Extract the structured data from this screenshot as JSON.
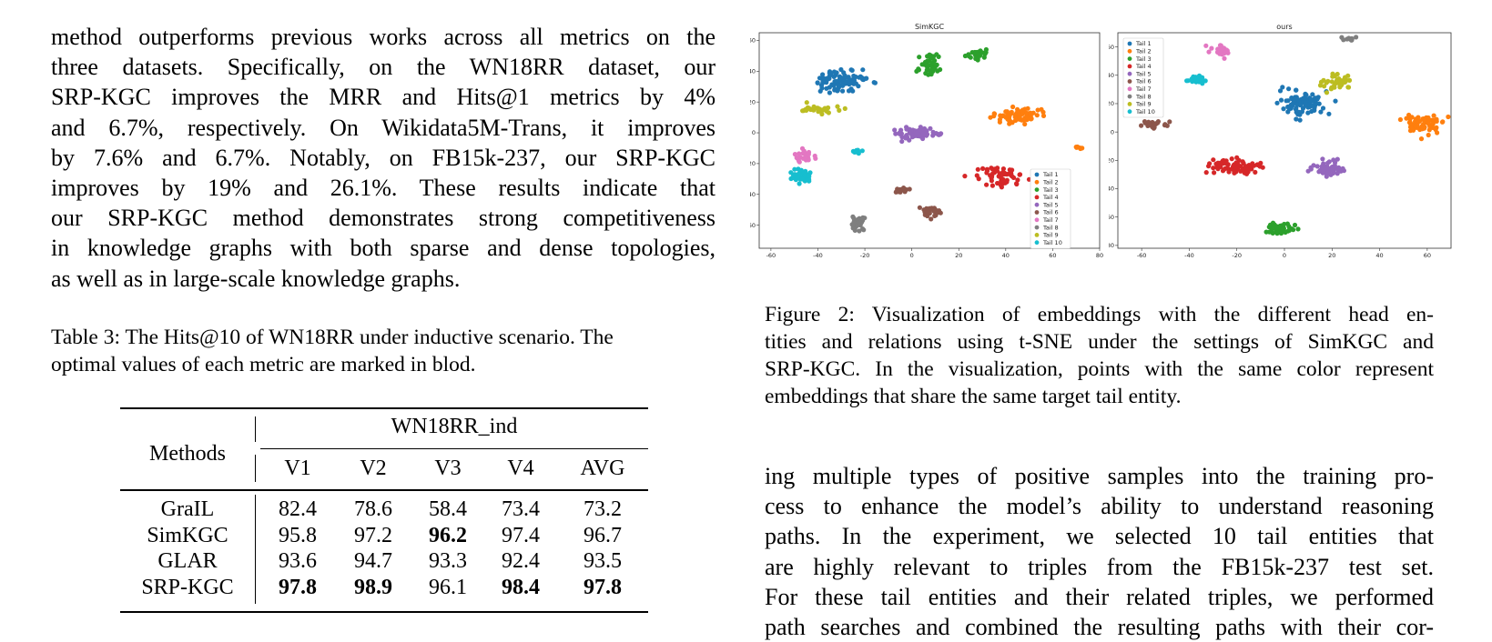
{
  "left_paragraph": [
    "method outperforms previous works across all metrics on the",
    "three datasets.  Specifically, on the WN18RR dataset, our",
    "SRP-KGC improves the MRR and Hits@1 metrics by 4%",
    "and 6.7%, respectively.  On Wikidata5M-Trans, it improves",
    "by 7.6% and 6.7%.  Notably, on FB15k-237, our SRP-KGC",
    "improves by 19% and 26.1%.  These results indicate that",
    "our SRP-KGC method demonstrates strong competitiveness",
    "in knowledge graphs with both sparse and dense topologies,",
    "as well as in large-scale knowledge graphs."
  ],
  "table_caption": [
    "Table 3: The Hits@10 of WN18RR under inductive scenario. The",
    "optimal values of each metric are marked in blod."
  ],
  "table": {
    "row_header": "Methods",
    "group_header": "WN18RR_ind",
    "columns": [
      "V1",
      "V2",
      "V3",
      "V4",
      "AVG"
    ],
    "rows": [
      {
        "method": "GraIL",
        "values": [
          "82.4",
          "78.6",
          "58.4",
          "73.4",
          "73.2"
        ],
        "bold": [
          false,
          false,
          false,
          false,
          false
        ]
      },
      {
        "method": "SimKGC",
        "values": [
          "95.8",
          "97.2",
          "96.2",
          "97.4",
          "96.7"
        ],
        "bold": [
          false,
          false,
          true,
          false,
          false
        ]
      },
      {
        "method": "GLAR",
        "values": [
          "93.6",
          "94.7",
          "93.3",
          "92.4",
          "93.5"
        ],
        "bold": [
          false,
          false,
          false,
          false,
          false
        ]
      },
      {
        "method": "SRP-KGC",
        "values": [
          "97.8",
          "98.9",
          "96.1",
          "98.4",
          "97.8"
        ],
        "bold": [
          true,
          true,
          false,
          true,
          true
        ]
      }
    ]
  },
  "figure_caption": [
    "Figure 2:  Visualization of embeddings with the different head en-",
    "tities and relations using t-SNE under the settings of SimKGC and",
    "SRP-KGC. In the visualization, points with the same color represent",
    "embeddings that share the same target tail entity."
  ],
  "right_paragraph": [
    "ing multiple types of positive samples into the training pro-",
    "cess to enhance the model’s ability to understand reasoning",
    "paths.  In the experiment, we selected 10 tail entities that",
    "are highly relevant to triples from the FB15k-237 test set.",
    "For these tail entities and their related triples, we performed",
    "path searches and combined the resulting paths with their cor-"
  ],
  "chart_data": [
    {
      "type": "scatter",
      "title": "SimKGC",
      "xlim": [
        -65,
        80
      ],
      "ylim": [
        -75,
        65
      ],
      "xticks": [
        -60,
        -40,
        -20,
        0,
        20,
        40,
        60,
        80
      ],
      "yticks": [
        -60,
        -40,
        -20,
        0,
        20,
        40,
        60
      ],
      "legend_position": "bottom-right",
      "series": [
        {
          "name": "Tail 1",
          "color": "#1f77b4",
          "clusters": [
            {
              "cx": -30,
              "cy": 33,
              "rx": 14,
              "ry": 8,
              "n": 95
            }
          ]
        },
        {
          "name": "Tail 2",
          "color": "#ff7f0e",
          "clusters": [
            {
              "cx": 46,
              "cy": 11,
              "rx": 11,
              "ry": 6,
              "n": 70
            },
            {
              "cx": 71,
              "cy": -10,
              "rx": 2,
              "ry": 2,
              "n": 6
            }
          ]
        },
        {
          "name": "Tail 3",
          "color": "#2ca02c",
          "clusters": [
            {
              "cx": 8,
              "cy": 44,
              "rx": 6,
              "ry": 8,
              "n": 40
            },
            {
              "cx": 28,
              "cy": 51,
              "rx": 6,
              "ry": 3,
              "n": 28
            }
          ]
        },
        {
          "name": "Tail 4",
          "color": "#d62728",
          "clusters": [
            {
              "cx": 37,
              "cy": -28,
              "rx": 10,
              "ry": 7,
              "n": 60
            }
          ]
        },
        {
          "name": "Tail 5",
          "color": "#9467bd",
          "clusters": [
            {
              "cx": 2,
              "cy": 0,
              "rx": 11,
              "ry": 5,
              "n": 70
            }
          ]
        },
        {
          "name": "Tail 6",
          "color": "#8c564b",
          "clusters": [
            {
              "cx": 9,
              "cy": -52,
              "rx": 5,
              "ry": 5,
              "n": 30
            },
            {
              "cx": -5,
              "cy": -37,
              "rx": 4,
              "ry": 3,
              "n": 15
            }
          ]
        },
        {
          "name": "Tail 7",
          "color": "#e377c2",
          "clusters": [
            {
              "cx": -45,
              "cy": -15,
              "rx": 6,
              "ry": 4,
              "n": 25
            }
          ]
        },
        {
          "name": "Tail 8",
          "color": "#7f7f7f",
          "clusters": [
            {
              "cx": -23,
              "cy": -58,
              "rx": 4,
              "ry": 5,
              "n": 35
            }
          ]
        },
        {
          "name": "Tail 9",
          "color": "#bcbd22",
          "clusters": [
            {
              "cx": -40,
              "cy": 15,
              "rx": 8,
              "ry": 3,
              "n": 30
            }
          ]
        },
        {
          "name": "Tail 10",
          "color": "#17becf",
          "clusters": [
            {
              "cx": -47,
              "cy": -28,
              "rx": 5,
              "ry": 5,
              "n": 40
            },
            {
              "cx": -24,
              "cy": -12,
              "rx": 4,
              "ry": 2,
              "n": 10
            }
          ]
        }
      ]
    },
    {
      "type": "scatter",
      "title": "ours",
      "xlim": [
        -70,
        70
      ],
      "ylim": [
        -82,
        70
      ],
      "xticks": [
        -60,
        -40,
        -20,
        0,
        20,
        40,
        60
      ],
      "yticks": [
        -80,
        -60,
        -40,
        -20,
        0,
        20,
        40,
        60
      ],
      "legend_position": "top-left",
      "series": [
        {
          "name": "Tail 1",
          "color": "#1f77b4",
          "clusters": [
            {
              "cx": 8,
              "cy": 20,
              "rx": 11,
              "ry": 9,
              "n": 95
            }
          ]
        },
        {
          "name": "Tail 2",
          "color": "#ff7f0e",
          "clusters": [
            {
              "cx": 58,
              "cy": 5,
              "rx": 9,
              "ry": 7,
              "n": 70
            }
          ]
        },
        {
          "name": "Tail 3",
          "color": "#2ca02c",
          "clusters": [
            {
              "cx": -2,
              "cy": -68,
              "rx": 7,
              "ry": 4,
              "n": 45
            }
          ]
        },
        {
          "name": "Tail 4",
          "color": "#d62728",
          "clusters": [
            {
              "cx": -20,
              "cy": -25,
              "rx": 12,
              "ry": 5,
              "n": 75
            }
          ]
        },
        {
          "name": "Tail 5",
          "color": "#9467bd",
          "clusters": [
            {
              "cx": 18,
              "cy": -26,
              "rx": 8,
              "ry": 6,
              "n": 55
            }
          ]
        },
        {
          "name": "Tail 6",
          "color": "#8c564b",
          "clusters": [
            {
              "cx": -55,
              "cy": 5,
              "rx": 6,
              "ry": 3,
              "n": 30
            }
          ]
        },
        {
          "name": "Tail 7",
          "color": "#e377c2",
          "clusters": [
            {
              "cx": -26,
              "cy": 57,
              "rx": 5,
              "ry": 4,
              "n": 35
            }
          ]
        },
        {
          "name": "Tail 8",
          "color": "#7f7f7f",
          "clusters": [
            {
              "cx": 27,
              "cy": 66,
              "rx": 3,
              "ry": 2,
              "n": 12
            }
          ]
        },
        {
          "name": "Tail 9",
          "color": "#bcbd22",
          "clusters": [
            {
              "cx": 22,
              "cy": 35,
              "rx": 7,
              "ry": 6,
              "n": 40
            }
          ]
        },
        {
          "name": "Tail 10",
          "color": "#17becf",
          "clusters": [
            {
              "cx": -37,
              "cy": 37,
              "rx": 4,
              "ry": 3,
              "n": 25
            }
          ]
        }
      ]
    }
  ]
}
